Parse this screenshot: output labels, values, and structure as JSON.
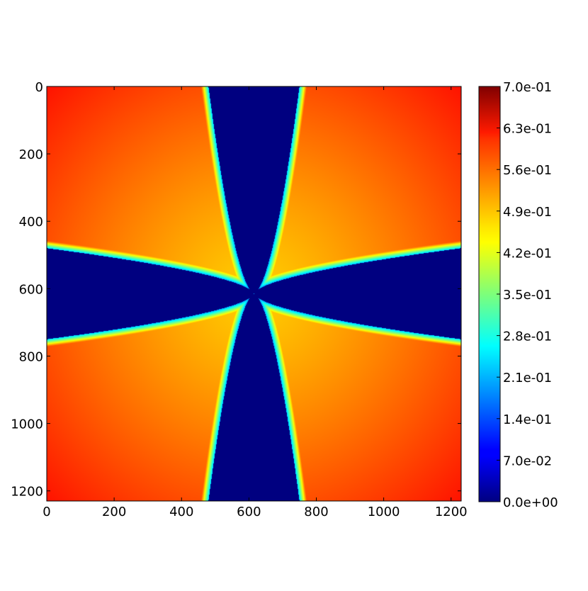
{
  "chart_data": {
    "type": "heatmap",
    "title": "",
    "xlabel": "",
    "ylabel": "",
    "colormap": "jet",
    "xlim": [
      0,
      1230
    ],
    "ylim": [
      1230,
      0
    ],
    "x_ticks": [
      "0",
      "200",
      "400",
      "600",
      "800",
      "1000",
      "1200"
    ],
    "x_tick_values": [
      0,
      200,
      400,
      600,
      800,
      1000,
      1200
    ],
    "y_ticks": [
      "0",
      "200",
      "400",
      "600",
      "800",
      "1000",
      "1200"
    ],
    "y_tick_values": [
      0,
      200,
      400,
      600,
      800,
      1000,
      1200
    ],
    "colorbar": {
      "min": 0.0,
      "max": 0.7,
      "tick_labels": [
        "0.0e+00",
        "7.0e-02",
        "1.4e-01",
        "2.1e-01",
        "2.8e-01",
        "3.5e-01",
        "4.2e-01",
        "4.9e-01",
        "5.6e-01",
        "6.3e-01",
        "7.0e-01"
      ],
      "tick_values": [
        0.0,
        0.07,
        0.14,
        0.21,
        0.28,
        0.35,
        0.42,
        0.49,
        0.56,
        0.63,
        0.7
      ]
    },
    "field": {
      "center": [
        615,
        615
      ],
      "pattern": "four-armed cross-shaped zero-valued region centered in the domain; arms reach all four edges; surrounding field is about 0.5-0.6 rising toward the corners",
      "zero_region_value": 0.0,
      "background_value_min": 0.47,
      "background_value_max": 0.6,
      "arm_edge_span": [
        470,
        740
      ]
    },
    "grid": false,
    "legend": "none"
  }
}
